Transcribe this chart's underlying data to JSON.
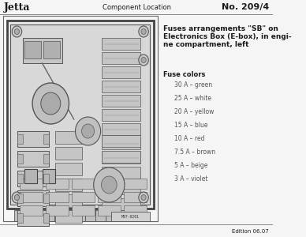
{
  "bg_color": "#f5f5f5",
  "page_title_left": "Jetta",
  "page_title_center": "Component Location",
  "page_title_right": "No. 209/4",
  "edition_text": "Edition 06.07",
  "diagram_title_line1": "Fuses arrangements \"SB\" on",
  "diagram_title_line2": "Electronics Box (E-box), in engi-",
  "diagram_title_line3": "ne compartment, left",
  "fuse_colors_label": "Fuse colors",
  "fuse_entries": [
    "30 A – green",
    "25 A – white",
    "20 A – yellow",
    "15 A – blue",
    "10 A – red",
    "7.5 A – brown",
    "5 A – beige",
    "3 A – violet"
  ],
  "text_color": "#1a1a1a",
  "gray_text": "#555555",
  "line_color": "#333333",
  "box_bg": "#e8e8e8",
  "inner_bg": "#d8d8d8"
}
